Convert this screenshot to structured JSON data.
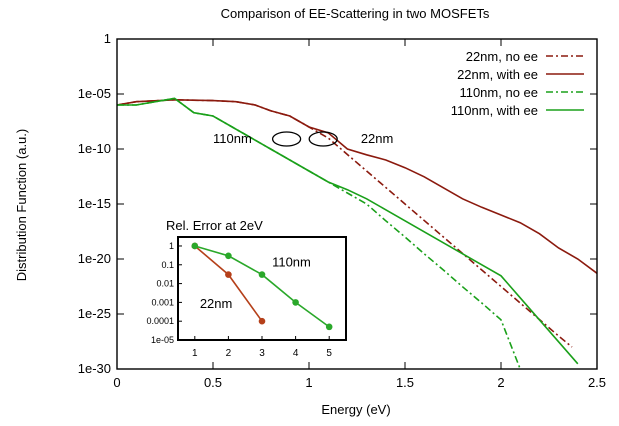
{
  "chart_data": {
    "type": "line",
    "title": "Comparison of EE-Scattering in two MOSFETs",
    "xlabel": "Energy (eV)",
    "ylabel": "Distribution Function (a.u.)",
    "xlim": [
      0,
      2.5
    ],
    "ylim": [
      1e-30,
      1
    ],
    "yscale": "log",
    "xticks": [
      "0",
      "0.5",
      "1",
      "1.5",
      "2",
      "2.5"
    ],
    "yticks": [
      "1e-30",
      "1e-25",
      "1e-20",
      "1e-15",
      "1e-10",
      "1e-05",
      "1"
    ],
    "grid": false,
    "legend_position": "top-right",
    "series": [
      {
        "name": "22nm, no ee",
        "color": "#8b1a0e",
        "dash": "dashdot",
        "x": [
          0,
          0.1,
          0.3,
          0.5,
          0.62,
          0.72,
          0.8,
          0.9,
          1.0,
          1.1,
          1.3,
          1.5,
          1.7,
          1.9,
          2.1,
          2.3,
          2.37
        ],
        "y": [
          1e-06,
          2e-06,
          3e-06,
          2.5e-06,
          2e-06,
          1e-06,
          3e-07,
          1e-07,
          1e-08,
          1e-09,
          1e-12,
          1e-15,
          1e-18,
          1e-21,
          1e-24,
          1e-27,
          1e-28
        ]
      },
      {
        "name": "22nm, with ee",
        "color": "#8b1a0e",
        "dash": "solid",
        "x": [
          0,
          0.1,
          0.3,
          0.5,
          0.62,
          0.72,
          0.8,
          0.9,
          1.0,
          1.1,
          1.2,
          1.3,
          1.4,
          1.5,
          1.6,
          1.7,
          1.8,
          1.9,
          2.0,
          2.1,
          2.2,
          2.3,
          2.4,
          2.5
        ],
        "y": [
          1e-06,
          2e-06,
          3e-06,
          2.5e-06,
          2e-06,
          1e-06,
          3e-07,
          1e-07,
          1e-08,
          3e-09,
          1e-10,
          3e-11,
          1e-11,
          2e-12,
          3e-13,
          3e-14,
          3e-15,
          5e-16,
          1e-16,
          2e-17,
          2e-18,
          1e-19,
          1e-20,
          5e-22
        ]
      },
      {
        "name": "110nm, no ee",
        "color": "#1aa01a",
        "dash": "dashdot",
        "x": [
          0,
          0.1,
          0.2,
          0.3,
          0.4,
          0.5,
          0.6,
          0.7,
          0.8,
          0.9,
          1.0,
          1.1,
          1.2,
          1.3,
          1.4,
          1.5,
          1.6,
          1.7,
          1.8,
          1.9,
          2.0,
          2.1
        ],
        "y": [
          1e-06,
          1e-06,
          2e-06,
          4e-06,
          2e-07,
          1e-07,
          1e-08,
          1e-09,
          1e-10,
          1e-11,
          1e-12,
          1e-13,
          1e-14,
          1e-15,
          3e-17,
          1e-18,
          3e-20,
          1e-21,
          3e-23,
          1e-24,
          3e-26,
          1e-30
        ]
      },
      {
        "name": "110nm, with ee",
        "color": "#1aa01a",
        "dash": "solid",
        "x": [
          0,
          0.1,
          0.2,
          0.3,
          0.4,
          0.5,
          0.6,
          0.7,
          0.8,
          0.9,
          1.0,
          1.1,
          1.2,
          1.3,
          1.4,
          1.5,
          1.6,
          1.7,
          1.8,
          1.9,
          2.0,
          2.1,
          2.2,
          2.3,
          2.4
        ],
        "y": [
          1e-06,
          1e-06,
          2e-06,
          4e-06,
          2e-07,
          1e-07,
          1e-08,
          1e-09,
          1e-10,
          1e-11,
          1e-12,
          1e-13,
          2e-14,
          3e-15,
          3e-16,
          3e-17,
          3e-18,
          3e-19,
          3e-20,
          3e-21,
          3e-22,
          3e-24,
          3e-26,
          3e-28,
          3e-30
        ]
      }
    ],
    "annotations": [
      {
        "text": "110nm",
        "x": 0.5,
        "y": 1e-09,
        "side": "left"
      },
      {
        "text": "22nm",
        "x": 1.27,
        "y": 1e-09,
        "side": "right"
      }
    ],
    "inset": {
      "title": "Rel. Error at 2eV",
      "xlim": [
        0.5,
        5.5
      ],
      "ylim": [
        1e-05,
        3
      ],
      "yscale": "log",
      "xticks": [
        "1",
        "2",
        "3",
        "4",
        "5"
      ],
      "yticks": [
        "1e-05",
        "0.0001",
        "0.001",
        "0.01",
        "0.1",
        "1"
      ],
      "series": [
        {
          "name": "22nm",
          "color": "#b5401a",
          "x": [
            1,
            2,
            3
          ],
          "y": [
            1,
            0.03,
            0.0001
          ]
        },
        {
          "name": "110nm",
          "color": "#2aa82a",
          "x": [
            1,
            2,
            3,
            4,
            5
          ],
          "y": [
            1,
            0.3,
            0.03,
            0.001,
            5e-05
          ]
        }
      ],
      "labels": [
        {
          "text": "110nm",
          "x": 3.3,
          "y": 0.08
        },
        {
          "text": "22nm",
          "x": 1.15,
          "y": 0.0005
        }
      ]
    }
  }
}
